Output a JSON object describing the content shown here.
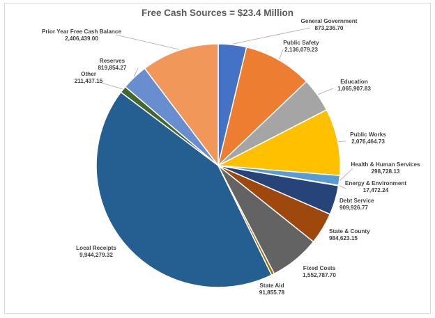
{
  "chart_data": {
    "type": "pie",
    "title": "Free Cash Sources = $23.4 Million",
    "slices": [
      {
        "name": "General Government",
        "value": "873,236.70",
        "amount": 873236.7,
        "color": "#4472c4"
      },
      {
        "name": "Public Safety",
        "value": "2,136,079.23",
        "amount": 2136079.23,
        "color": "#ed7d31"
      },
      {
        "name": "Education",
        "value": "1,065,907.83",
        "amount": 1065907.83,
        "color": "#a5a5a5"
      },
      {
        "name": "Public Works",
        "value": "2,076,464.73",
        "amount": 2076464.73,
        "color": "#ffc000"
      },
      {
        "name": "Health & Human Services",
        "value": "298,728.13",
        "amount": 298728.13,
        "color": "#5b9bd5"
      },
      {
        "name": "Energy & Environment",
        "value": "17,472.24",
        "amount": 17472.24,
        "color": "#70ad47"
      },
      {
        "name": "Debt Service",
        "value": "909,926.77",
        "amount": 909926.77,
        "color": "#264478"
      },
      {
        "name": "State & County",
        "value": "984,623.15",
        "amount": 984623.15,
        "color": "#9e480e"
      },
      {
        "name": "Fixed Costs",
        "value": "1,552,787.70",
        "amount": 1552787.7,
        "color": "#636363"
      },
      {
        "name": "State Aid",
        "value": "91,855.78",
        "amount": 91855.78,
        "color": "#997300"
      },
      {
        "name": "Local Receipts",
        "value": "9,944,279.32",
        "amount": 9944279.32,
        "color": "#255e91"
      },
      {
        "name": "Other",
        "value": "211,437.15",
        "amount": 211437.15,
        "color": "#43682b"
      },
      {
        "name": "Reserves",
        "value": "819,854.27",
        "amount": 819854.27,
        "color": "#698ed0"
      },
      {
        "name": "Prior Year Free Cash Balance",
        "value": "2,406,439.00",
        "amount": 2406439.0,
        "color": "#f1975a"
      }
    ]
  }
}
